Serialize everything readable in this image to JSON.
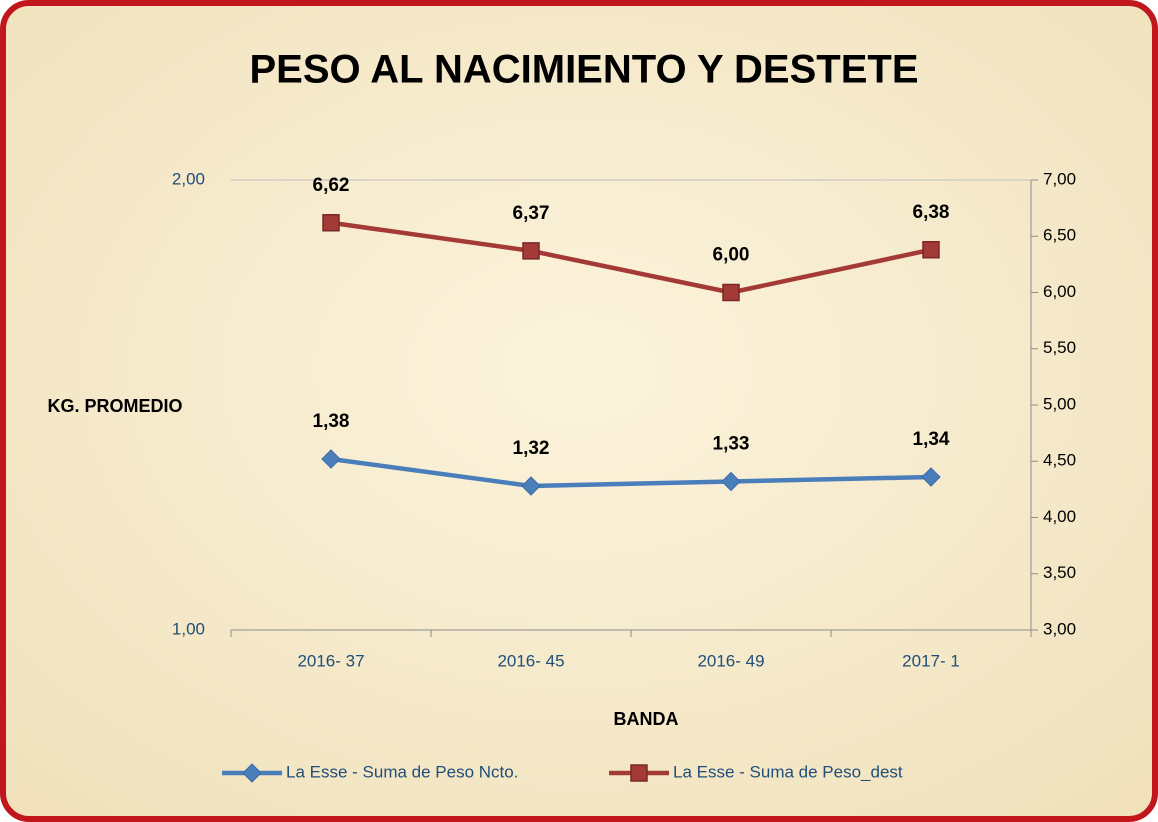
{
  "chart_data": {
    "type": "line",
    "title": "PESO AL NACIMIENTO Y DESTETE",
    "ylabel": "KG. PROMEDIO",
    "xlabel": "BANDA",
    "categories": [
      "2016- 37",
      "2016- 45",
      "2016- 49",
      "2017- 1"
    ],
    "series": [
      {
        "name": "La Esse - Suma de Peso Ncto.",
        "color": "#4a7ebb",
        "marker": "diamond",
        "axis": "y",
        "values": [
          1.38,
          1.32,
          1.33,
          1.34
        ],
        "value_labels": [
          "1,38",
          "1,32",
          "1,33",
          "1,34"
        ]
      },
      {
        "name": "La Esse - Suma de Peso_dest",
        "color": "#a33a36",
        "marker": "square",
        "axis": "y2",
        "values": [
          6.62,
          6.37,
          6.0,
          6.38
        ],
        "value_labels": [
          "6,62",
          "6,37",
          "6,00",
          "6,38"
        ]
      }
    ],
    "ylim": [
      1,
      2
    ],
    "yticks": [
      {
        "value": 1,
        "label": "1,00"
      },
      {
        "value": 2,
        "label": "2,00"
      }
    ],
    "y2lim": [
      3,
      7
    ],
    "y2ticks": [
      {
        "value": 3,
        "label": "3,00"
      },
      {
        "value": 3.5,
        "label": "3,50"
      },
      {
        "value": 4,
        "label": "4,00"
      },
      {
        "value": 4.5,
        "label": "4,50"
      },
      {
        "value": 5,
        "label": "5,00"
      },
      {
        "value": 5.5,
        "label": "5,50"
      },
      {
        "value": 6,
        "label": "6,00"
      },
      {
        "value": 6.5,
        "label": "6,50"
      },
      {
        "value": 7,
        "label": "7,00"
      }
    ],
    "grid": true,
    "legend": "bottom"
  }
}
